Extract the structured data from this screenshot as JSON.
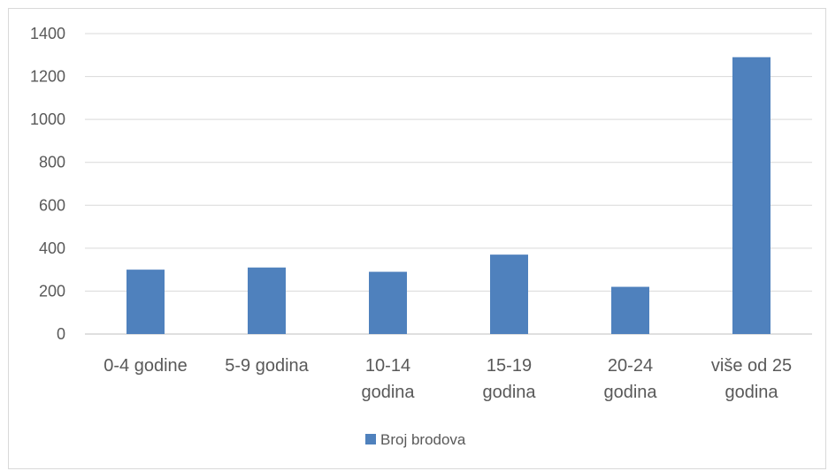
{
  "chart_data": {
    "type": "bar",
    "categories": [
      [
        "0-4 godine"
      ],
      [
        "5-9 godina"
      ],
      [
        "10-14",
        "godina"
      ],
      [
        "15-19",
        "godina"
      ],
      [
        "20-24",
        "godina"
      ],
      [
        "više od 25",
        "godina"
      ]
    ],
    "series": [
      {
        "name": "Broj brodova",
        "values": [
          300,
          310,
          290,
          370,
          220,
          1290
        ],
        "color": "#4f81bd"
      }
    ],
    "ylim": [
      0,
      1400
    ],
    "yticks": [
      0,
      200,
      400,
      600,
      800,
      1000,
      1200,
      1400
    ],
    "grid": true,
    "legend": "bottom"
  }
}
